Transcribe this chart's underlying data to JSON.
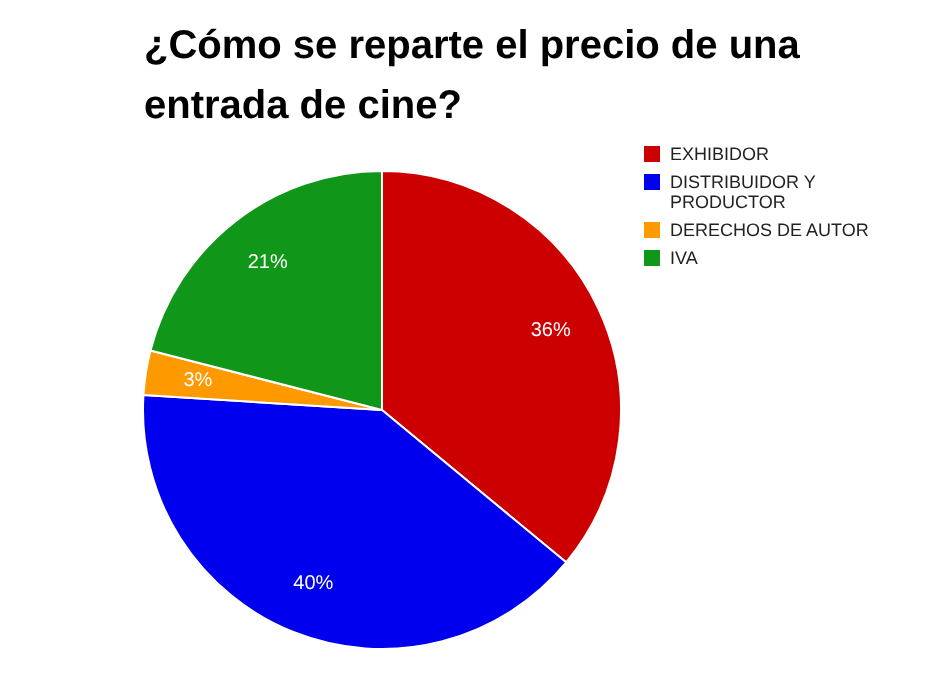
{
  "chart_data": {
    "type": "pie",
    "title": "¿Cómo se reparte el precio de una entrada de cine?",
    "categories": [
      "EXHIBIDOR",
      "DISTRIBUIDOR Y PRODUCTOR",
      "DERECHOS DE AUTOR",
      "IVA"
    ],
    "values": [
      36,
      40,
      3,
      21
    ],
    "colors": [
      "#cc0000",
      "#0000ee",
      "#ff9900",
      "#109618"
    ],
    "value_labels": [
      "36%",
      "40%",
      "3%",
      "21%"
    ],
    "legend": "top right"
  }
}
